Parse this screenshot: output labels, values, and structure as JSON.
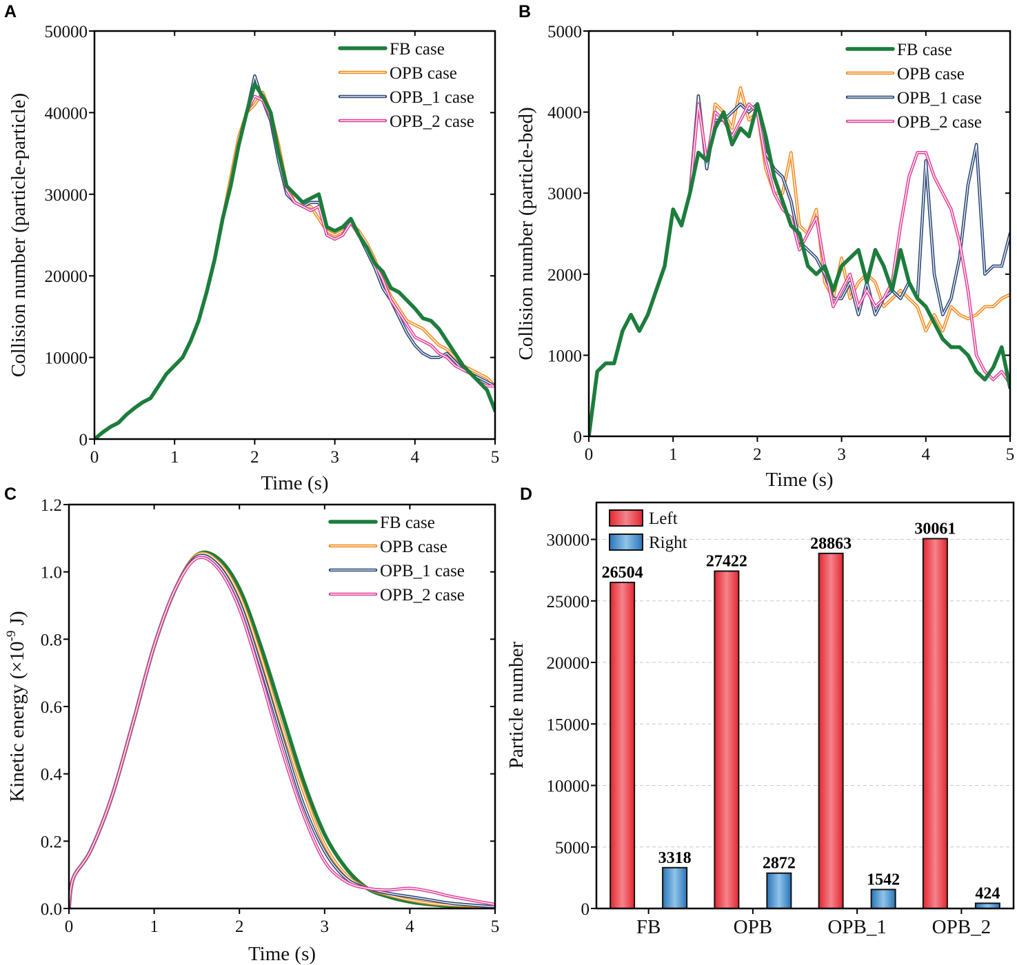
{
  "colors": {
    "FB": "#1c7d3c",
    "OPB": "#f28a1e",
    "OPB_1": "#2c4a7a",
    "OPB_2": "#e0459a",
    "left": "#e3262f",
    "right": "#2a74b8"
  },
  "chart_data": [
    {
      "panel": "A",
      "type": "line",
      "xlabel": "Time (s)",
      "ylabel": "Collision number (particle-particle)",
      "xlim": [
        0,
        5
      ],
      "ylim": [
        0,
        50000
      ],
      "xticks": [
        0,
        1,
        2,
        3,
        4,
        5
      ],
      "yticks": [
        0,
        10000,
        20000,
        30000,
        40000,
        50000
      ],
      "legend_position": "top-right",
      "x_step": 0.1,
      "series": [
        {
          "name": "FB case",
          "key": "FB",
          "values": [
            0,
            800,
            1500,
            2000,
            3000,
            3800,
            4500,
            5000,
            6500,
            8000,
            9000,
            10000,
            12000,
            14500,
            18000,
            22000,
            27000,
            31000,
            36000,
            40000,
            43500,
            42000,
            40000,
            35000,
            31000,
            30000,
            29000,
            29500,
            30000,
            26000,
            25500,
            26000,
            27000,
            25000,
            23500,
            21500,
            20500,
            18500,
            18000,
            17000,
            16000,
            14800,
            14500,
            13500,
            12000,
            10500,
            9000,
            8000,
            7000,
            6000,
            3500
          ]
        },
        {
          "name": "OPB case",
          "key": "OPB",
          "values": [
            0,
            800,
            1500,
            2000,
            3000,
            3800,
            4500,
            5000,
            6500,
            8000,
            9000,
            10000,
            12000,
            14500,
            18000,
            22000,
            27000,
            32000,
            37000,
            40000,
            41000,
            42500,
            40000,
            36000,
            31000,
            29000,
            28500,
            28500,
            27000,
            25500,
            25000,
            25500,
            26500,
            25500,
            24000,
            22000,
            19500,
            17500,
            16000,
            14500,
            14000,
            13500,
            12500,
            11500,
            11000,
            10000,
            9000,
            8500,
            8000,
            7500,
            6500
          ]
        },
        {
          "name": "OPB_1 case",
          "key": "OPB_1",
          "values": [
            0,
            800,
            1500,
            2000,
            3000,
            3800,
            4500,
            5000,
            6500,
            8000,
            9000,
            10000,
            12000,
            14500,
            18000,
            22000,
            27000,
            31000,
            36000,
            40000,
            44500,
            41500,
            39000,
            34000,
            30000,
            29000,
            28500,
            29000,
            29000,
            25000,
            24500,
            25000,
            27000,
            25000,
            23000,
            21000,
            18500,
            17000,
            15000,
            13000,
            11500,
            10500,
            10000,
            10000,
            10500,
            9500,
            8500,
            8000,
            7500,
            7000,
            6500
          ]
        },
        {
          "name": "OPB_2 case",
          "key": "OPB_2",
          "values": [
            0,
            800,
            1500,
            2000,
            3000,
            3800,
            4500,
            5000,
            6500,
            8000,
            9000,
            10000,
            12000,
            14500,
            18000,
            22000,
            27000,
            31000,
            36000,
            40000,
            42000,
            41500,
            39500,
            35000,
            30500,
            29000,
            28500,
            28000,
            28500,
            25000,
            24500,
            25000,
            26500,
            25000,
            23500,
            21500,
            19500,
            17000,
            15500,
            14000,
            12500,
            12000,
            11500,
            10500,
            10000,
            9000,
            8500,
            8000,
            7000,
            6500,
            6500
          ]
        }
      ]
    },
    {
      "panel": "B",
      "type": "line",
      "xlabel": "Time (s)",
      "ylabel": "Collision number (particle-bed)",
      "xlim": [
        0,
        5
      ],
      "ylim": [
        0,
        5000
      ],
      "xticks": [
        0,
        1,
        2,
        3,
        4,
        5
      ],
      "yticks": [
        0,
        1000,
        2000,
        3000,
        4000,
        5000
      ],
      "legend_position": "top-right",
      "x_step": 0.1,
      "series": [
        {
          "name": "FB case",
          "key": "FB",
          "values": [
            0,
            800,
            900,
            900,
            1300,
            1500,
            1300,
            1500,
            1800,
            2100,
            2800,
            2600,
            3000,
            3500,
            3400,
            3800,
            4000,
            3600,
            3800,
            3700,
            4100,
            3700,
            3200,
            2900,
            2600,
            2500,
            2100,
            2000,
            2100,
            1800,
            2100,
            2200,
            2300,
            1900,
            2300,
            2100,
            1800,
            2300,
            1900,
            1700,
            1600,
            1400,
            1200,
            1100,
            1100,
            1000,
            800,
            700,
            850,
            1100,
            600
          ]
        },
        {
          "name": "OPB case",
          "key": "OPB",
          "values": [
            0,
            800,
            900,
            900,
            1300,
            1500,
            1300,
            1500,
            1800,
            2100,
            2800,
            2600,
            3000,
            4200,
            3300,
            4100,
            4000,
            3800,
            4300,
            3900,
            4000,
            3300,
            3000,
            3000,
            3500,
            2600,
            2500,
            2800,
            1900,
            1700,
            2200,
            1700,
            1900,
            2000,
            1900,
            1600,
            1700,
            1800,
            1700,
            1600,
            1300,
            1500,
            1300,
            1600,
            1500,
            1450,
            1500,
            1600,
            1600,
            1700,
            1750
          ]
        },
        {
          "name": "OPB_1 case",
          "key": "OPB_1",
          "values": [
            0,
            800,
            900,
            900,
            1300,
            1500,
            1300,
            1500,
            1800,
            2100,
            2800,
            2600,
            3000,
            4200,
            3300,
            3900,
            3900,
            4000,
            4100,
            4000,
            4100,
            3500,
            3300,
            3200,
            2900,
            2400,
            2300,
            2200,
            2000,
            1700,
            1700,
            1900,
            1500,
            1900,
            1500,
            1700,
            1800,
            1700,
            1900,
            1700,
            3400,
            2000,
            1500,
            1700,
            2200,
            3100,
            3600,
            2000,
            2100,
            2100,
            2500
          ]
        },
        {
          "name": "OPB_2 case",
          "key": "OPB_2",
          "values": [
            0,
            800,
            900,
            900,
            1300,
            1500,
            1300,
            1500,
            1800,
            2100,
            2800,
            2600,
            3000,
            4100,
            3400,
            4000,
            3900,
            3700,
            3900,
            4100,
            4000,
            3400,
            3000,
            2800,
            2700,
            2300,
            2500,
            2700,
            2100,
            1600,
            1800,
            2000,
            1600,
            1800,
            1600,
            1700,
            1900,
            2600,
            3200,
            3500,
            3500,
            3200,
            3000,
            2800,
            2400,
            1800,
            1000,
            800,
            700,
            800,
            650
          ]
        }
      ]
    },
    {
      "panel": "C",
      "type": "line",
      "xlabel": "Time (s)",
      "ylabel": "Kinetic energy (×10",
      "ylabel_sup": "-9",
      "ylabel_tail": " J)",
      "xlim": [
        0,
        5
      ],
      "ylim": [
        0,
        1.2
      ],
      "xticks": [
        0,
        1,
        2,
        3,
        4,
        5
      ],
      "yticks": [
        "0.0",
        "0.2",
        "0.4",
        "0.6",
        "0.8",
        "1.0",
        "1.2"
      ],
      "legend_position": "top-right",
      "x": [
        0,
        0.05,
        0.25,
        0.5,
        0.75,
        1.0,
        1.25,
        1.5,
        1.75,
        2.0,
        2.25,
        2.5,
        2.75,
        3.0,
        3.25,
        3.5,
        3.75,
        4.0,
        4.25,
        4.5,
        5.0
      ],
      "series": [
        {
          "name": "FB case",
          "key": "FB",
          "values": [
            0,
            0.09,
            0.17,
            0.33,
            0.55,
            0.78,
            0.95,
            1.05,
            1.04,
            0.95,
            0.78,
            0.58,
            0.38,
            0.22,
            0.12,
            0.06,
            0.035,
            0.02,
            0.012,
            0.007,
            0.002
          ]
        },
        {
          "name": "OPB case",
          "key": "OPB",
          "values": [
            0,
            0.09,
            0.17,
            0.33,
            0.55,
            0.78,
            0.95,
            1.05,
            1.03,
            0.93,
            0.75,
            0.54,
            0.35,
            0.19,
            0.1,
            0.06,
            0.04,
            0.025,
            0.015,
            0.01,
            0.005
          ]
        },
        {
          "name": "OPB_1 case",
          "key": "OPB_1",
          "values": [
            0,
            0.09,
            0.17,
            0.33,
            0.55,
            0.78,
            0.95,
            1.045,
            1.02,
            0.91,
            0.72,
            0.51,
            0.31,
            0.17,
            0.09,
            0.06,
            0.045,
            0.035,
            0.025,
            0.015,
            0.005
          ]
        },
        {
          "name": "OPB_2 case",
          "key": "OPB_2",
          "values": [
            0,
            0.09,
            0.17,
            0.33,
            0.55,
            0.78,
            0.95,
            1.04,
            1.01,
            0.89,
            0.69,
            0.47,
            0.28,
            0.14,
            0.08,
            0.06,
            0.055,
            0.06,
            0.05,
            0.035,
            0.012
          ]
        }
      ]
    },
    {
      "panel": "D",
      "type": "bar",
      "xlabel": "",
      "ylabel": "Particle number",
      "ylim": [
        0,
        33000
      ],
      "yticks": [
        0,
        5000,
        10000,
        15000,
        20000,
        25000,
        30000
      ],
      "grid": true,
      "legend_position": "top-left",
      "categories": [
        "FB",
        "OPB",
        "OPB_1",
        "OPB_2"
      ],
      "series": [
        {
          "name": "Left",
          "key": "left",
          "values": [
            26504,
            27422,
            28863,
            30061
          ]
        },
        {
          "name": "Right",
          "key": "right",
          "values": [
            3318,
            2872,
            1542,
            424
          ]
        }
      ]
    }
  ]
}
